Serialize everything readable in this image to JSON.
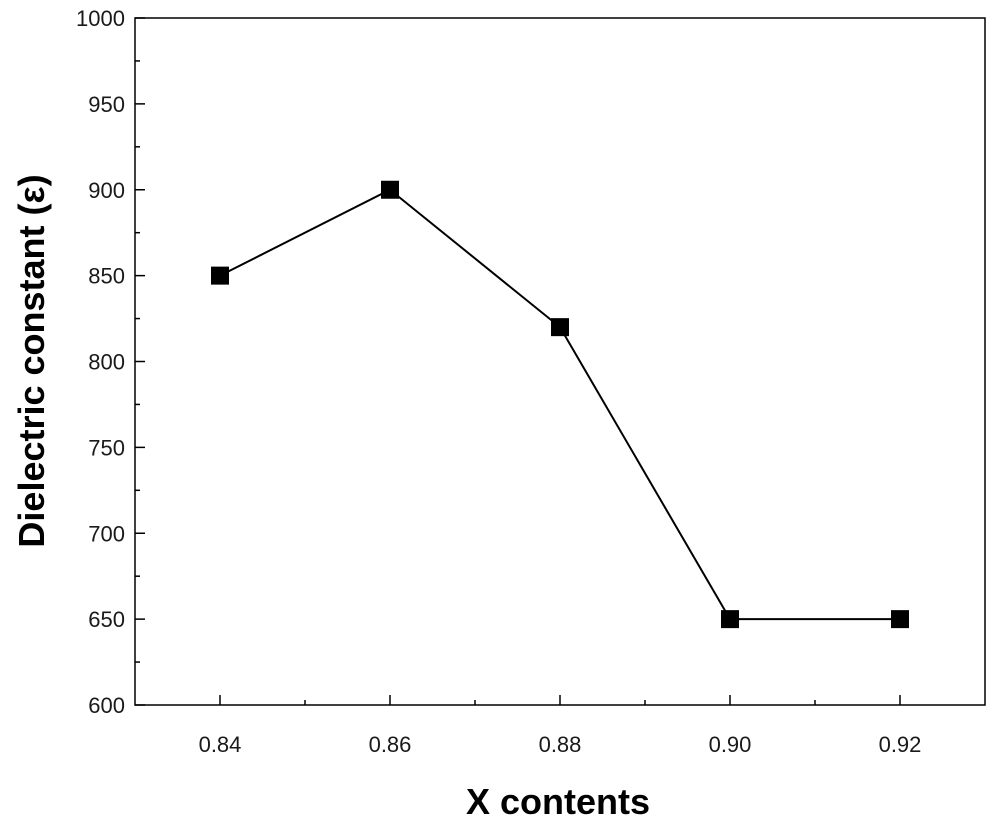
{
  "chart_data": {
    "type": "line",
    "xlabel": "X contents",
    "ylabel": "Dielectric constant (ε)",
    "x": [
      0.84,
      0.86,
      0.88,
      0.9,
      0.92
    ],
    "series": [
      {
        "values": [
          850,
          900,
          820,
          650,
          650
        ],
        "marker": "square",
        "color": "#000000"
      }
    ],
    "xlim": [
      0.83,
      0.93
    ],
    "ylim": [
      600,
      1000
    ],
    "xticks": [
      "0.84",
      "0.86",
      "0.88",
      "0.90",
      "0.92"
    ],
    "yticks": [
      "600",
      "650",
      "700",
      "750",
      "800",
      "850",
      "900",
      "950",
      "1000"
    ],
    "grid": false
  }
}
